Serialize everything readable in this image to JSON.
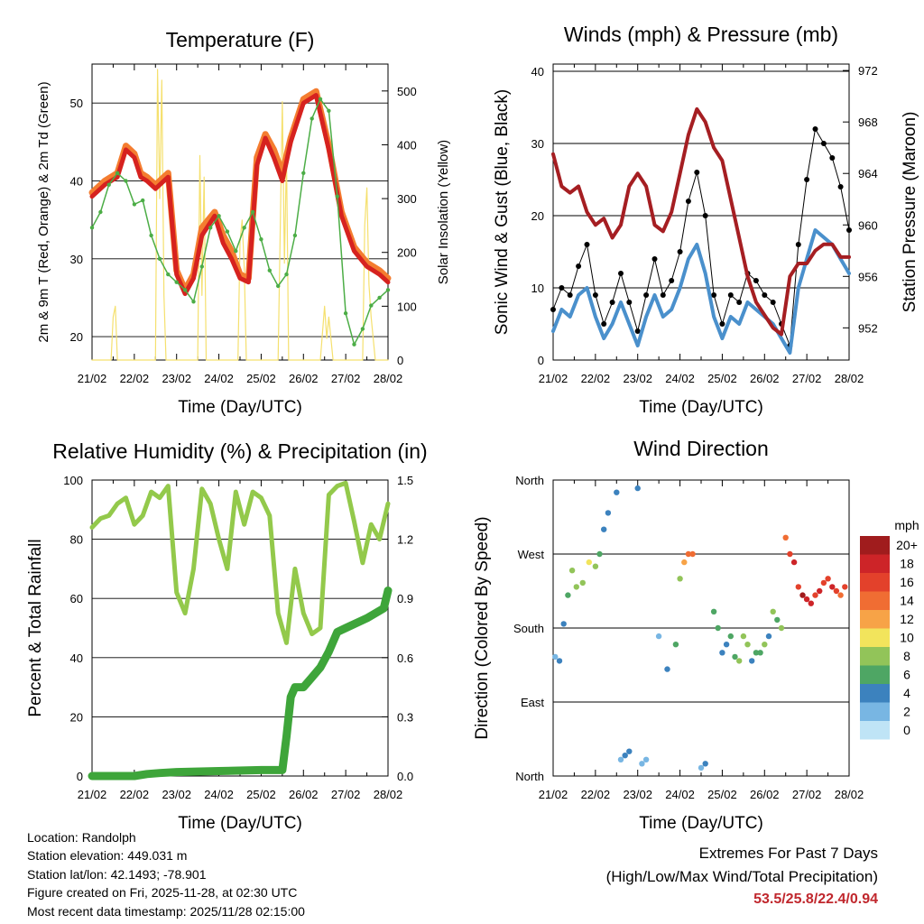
{
  "chart_data": [
    {
      "type": "line",
      "title": "Temperature (F)",
      "xlabel": "Time (Day/UTC)",
      "ylabel": "2m & 9m T (Red, Orange) & 2m Td (Green)",
      "ylabel_right": "Solar Insolation (Yellow)",
      "ylim": [
        17,
        55
      ],
      "ylim_right": [
        0,
        550
      ],
      "xlim": [
        0,
        7
      ],
      "x_tick_labels": [
        "21/02",
        "22/02",
        "23/02",
        "24/02",
        "25/02",
        "26/02",
        "27/02",
        "28/02"
      ],
      "y_ticks": [
        20,
        30,
        40,
        50
      ],
      "y_ticks_right": [
        0,
        100,
        200,
        300,
        400,
        500
      ],
      "series": [
        {
          "name": "2m T",
          "color": "#d6221f",
          "x": [
            0,
            0.3,
            0.6,
            0.8,
            1.0,
            1.15,
            1.3,
            1.5,
            1.8,
            2.0,
            2.2,
            2.4,
            2.6,
            2.9,
            3.1,
            3.3,
            3.5,
            3.7,
            3.9,
            4.1,
            4.3,
            4.5,
            4.7,
            5.0,
            5.3,
            5.6,
            5.9,
            6.2,
            6.5,
            6.8,
            7.0
          ],
          "y": [
            38,
            39.5,
            40.5,
            44,
            43,
            40.5,
            40,
            39,
            40.5,
            28,
            25.5,
            27.5,
            33,
            35.5,
            32,
            30,
            27.5,
            27,
            42,
            45.5,
            43,
            40,
            45,
            50,
            51,
            44,
            35.5,
            31,
            29,
            28,
            27
          ]
        },
        {
          "name": "9m T",
          "color": "#f47d30",
          "x": [
            0,
            0.3,
            0.6,
            0.8,
            1.0,
            1.15,
            1.3,
            1.5,
            1.8,
            2.0,
            2.2,
            2.4,
            2.6,
            2.9,
            3.1,
            3.3,
            3.5,
            3.7,
            3.9,
            4.1,
            4.3,
            4.5,
            4.7,
            5.0,
            5.3,
            5.6,
            5.9,
            6.2,
            6.5,
            6.8,
            7.0
          ],
          "y": [
            38.5,
            40,
            41,
            44.5,
            43.5,
            41,
            40.5,
            39.5,
            41,
            28.5,
            26,
            28,
            34,
            36,
            33,
            31,
            28,
            27.5,
            43,
            46,
            44,
            41,
            45.5,
            50.5,
            51.5,
            44.5,
            36,
            31.5,
            29.5,
            28.5,
            27.5
          ]
        },
        {
          "name": "2m Td",
          "color": "#4cad46",
          "x": [
            0,
            0.2,
            0.4,
            0.6,
            0.8,
            1.0,
            1.2,
            1.4,
            1.6,
            1.8,
            2.0,
            2.2,
            2.4,
            2.6,
            2.8,
            3.0,
            3.2,
            3.4,
            3.6,
            3.8,
            4.0,
            4.2,
            4.4,
            4.6,
            4.8,
            5.0,
            5.2,
            5.4,
            5.6,
            5.8,
            6.0,
            6.2,
            6.4,
            6.6,
            6.8,
            7.0
          ],
          "y": [
            34,
            36,
            39.5,
            41,
            40,
            37,
            37.5,
            33,
            30,
            28,
            27,
            26,
            24.5,
            29,
            34,
            35.5,
            33.5,
            31,
            34,
            36,
            32.5,
            28.5,
            26.5,
            28,
            33,
            41,
            48,
            50.5,
            49,
            38,
            23,
            19,
            21,
            24,
            25,
            26
          ]
        },
        {
          "name": "Solar Insolation",
          "color": "#f5e06e",
          "axis": "right",
          "x": [
            0,
            0.45,
            0.5,
            0.55,
            0.6,
            1.0,
            1.5,
            1.55,
            1.6,
            1.65,
            1.7,
            1.75,
            2.0,
            2.5,
            2.55,
            2.6,
            2.65,
            2.7,
            3.0,
            3.45,
            3.5,
            3.55,
            3.6,
            3.65,
            4.0,
            4.4,
            4.5,
            4.55,
            4.6,
            4.65,
            5.0,
            5.4,
            5.5,
            5.55,
            5.6,
            5.7,
            6.0,
            6.4,
            6.45,
            6.5,
            6.55,
            6.6,
            6.7,
            7.0
          ],
          "y": [
            0,
            0,
            80,
            100,
            0,
            0,
            0,
            540,
            300,
            520,
            120,
            0,
            0,
            0,
            380,
            120,
            340,
            0,
            0,
            0,
            220,
            260,
            170,
            0,
            0,
            0,
            480,
            180,
            380,
            0,
            0,
            0,
            100,
            40,
            80,
            0,
            0,
            0,
            250,
            320,
            140,
            80,
            0,
            0
          ]
        }
      ]
    },
    {
      "type": "line",
      "title": "Winds (mph) & Pressure (mb)",
      "xlabel": "Time (Day/UTC)",
      "ylabel": "Sonic Wind & Gust (Blue, Black)",
      "ylabel_right": "Station Pressure (Maroon)",
      "ylim": [
        0,
        41
      ],
      "ylim_right": [
        949.5,
        972.5
      ],
      "xlim": [
        0,
        7
      ],
      "x_tick_labels": [
        "21/02",
        "22/02",
        "23/02",
        "24/02",
        "25/02",
        "26/02",
        "27/02",
        "28/02"
      ],
      "y_ticks": [
        0,
        10,
        20,
        30,
        40
      ],
      "y_ticks_right": [
        952,
        956,
        960,
        964,
        968,
        972
      ],
      "series": [
        {
          "name": "Sonic Wind",
          "color": "#4a90cc",
          "x": [
            0,
            0.2,
            0.4,
            0.6,
            0.8,
            1.0,
            1.2,
            1.4,
            1.6,
            1.8,
            2.0,
            2.2,
            2.4,
            2.6,
            2.8,
            3.0,
            3.2,
            3.4,
            3.6,
            3.8,
            4.0,
            4.2,
            4.4,
            4.6,
            4.8,
            5.0,
            5.2,
            5.4,
            5.6,
            5.8,
            6.0,
            6.2,
            6.4,
            6.6,
            6.8,
            7.0
          ],
          "y": [
            4,
            7,
            6,
            9,
            10,
            6,
            3,
            5,
            8,
            5,
            2,
            6,
            9,
            6,
            7,
            10,
            14,
            16,
            12,
            6,
            3,
            6,
            5,
            8,
            7,
            6,
            5,
            3,
            1,
            10,
            14,
            18,
            17,
            16,
            14,
            12
          ]
        },
        {
          "name": "Sonic Gust",
          "color": "#000000",
          "x": [
            0,
            0.2,
            0.4,
            0.6,
            0.8,
            1.0,
            1.2,
            1.4,
            1.6,
            1.8,
            2.0,
            2.2,
            2.4,
            2.6,
            2.8,
            3.0,
            3.2,
            3.4,
            3.6,
            3.8,
            4.0,
            4.2,
            4.4,
            4.6,
            4.8,
            5.0,
            5.2,
            5.4,
            5.6,
            5.8,
            6.0,
            6.2,
            6.4,
            6.6,
            6.8,
            7.0
          ],
          "y": [
            7,
            10,
            9,
            13,
            16,
            9,
            5,
            8,
            12,
            8,
            4,
            9,
            14,
            9,
            11,
            15,
            22,
            26,
            20,
            9,
            5,
            9,
            8,
            12,
            11,
            9,
            8,
            5,
            2,
            16,
            25,
            32,
            30,
            28,
            24,
            18
          ]
        },
        {
          "name": "Station Pressure",
          "color": "#a51e22",
          "axis": "right",
          "x": [
            0,
            0.2,
            0.4,
            0.6,
            0.8,
            1.0,
            1.2,
            1.4,
            1.6,
            1.8,
            2.0,
            2.2,
            2.4,
            2.6,
            2.8,
            3.0,
            3.2,
            3.4,
            3.6,
            3.8,
            4.0,
            4.2,
            4.4,
            4.6,
            4.8,
            5.0,
            5.2,
            5.4,
            5.6,
            5.8,
            6.0,
            6.2,
            6.4,
            6.6,
            6.8,
            7.0
          ],
          "y": [
            965.5,
            963,
            962.5,
            963,
            961,
            960,
            960.5,
            959,
            960,
            963,
            964,
            963,
            960,
            959.5,
            961,
            964,
            967,
            969,
            968,
            966,
            965,
            962,
            959,
            956,
            954,
            953,
            952,
            951.5,
            956,
            957,
            957,
            958,
            958.5,
            958.5,
            957.5,
            957.5
          ]
        }
      ]
    },
    {
      "type": "line",
      "title": "Relative Humidity (%) & Precipitation (in)",
      "xlabel": "Time (Day/UTC)",
      "ylabel": "Percent & Total Rainfall",
      "ylim": [
        0,
        100
      ],
      "ylim_right": [
        0,
        1.5
      ],
      "xlim": [
        0,
        7
      ],
      "x_tick_labels": [
        "21/02",
        "22/02",
        "23/02",
        "24/02",
        "25/02",
        "26/02",
        "27/02",
        "28/02"
      ],
      "y_ticks": [
        0,
        20,
        40,
        60,
        80,
        100
      ],
      "y_ticks_right": [
        "0.0",
        "0.3",
        "0.6",
        "0.9",
        "1.2",
        "1.5"
      ],
      "series": [
        {
          "name": "Relative Humidity",
          "color": "#93c94b",
          "x": [
            0,
            0.2,
            0.4,
            0.6,
            0.8,
            1.0,
            1.2,
            1.4,
            1.6,
            1.8,
            2.0,
            2.2,
            2.4,
            2.6,
            2.8,
            3.0,
            3.2,
            3.4,
            3.6,
            3.8,
            4.0,
            4.2,
            4.4,
            4.6,
            4.8,
            5.0,
            5.2,
            5.4,
            5.6,
            5.8,
            6.0,
            6.2,
            6.4,
            6.6,
            6.8,
            7.0
          ],
          "y": [
            84,
            87,
            88,
            92,
            94,
            85,
            88,
            96,
            94,
            98,
            62,
            55,
            70,
            97,
            92,
            80,
            70,
            96,
            85,
            96,
            94,
            88,
            55,
            45,
            70,
            55,
            48,
            50,
            95,
            98,
            99,
            86,
            72,
            85,
            80,
            92
          ]
        },
        {
          "name": "Total Rainfall",
          "color": "#3ea53a",
          "axis": "right",
          "x": [
            0,
            0.5,
            1.0,
            1.3,
            1.6,
            2.0,
            3.0,
            4.0,
            4.5,
            4.6,
            4.7,
            4.8,
            5.0,
            5.2,
            5.4,
            5.6,
            5.8,
            6.0,
            6.5,
            6.9,
            7.0
          ],
          "y": [
            0,
            0,
            0,
            0.01,
            0.015,
            0.02,
            0.025,
            0.03,
            0.03,
            0.2,
            0.4,
            0.45,
            0.45,
            0.5,
            0.55,
            0.63,
            0.73,
            0.75,
            0.8,
            0.85,
            0.94
          ]
        }
      ]
    },
    {
      "type": "scatter",
      "title": "Wind Direction",
      "xlabel": "Time (Day/UTC)",
      "ylabel": "Direction (Colored By Speed)",
      "ylim": [
        0,
        360
      ],
      "xlim": [
        0,
        7
      ],
      "x_tick_labels": [
        "21/02",
        "22/02",
        "23/02",
        "24/02",
        "25/02",
        "26/02",
        "27/02",
        "28/02"
      ],
      "y_tick_labels": [
        "North",
        "East",
        "South",
        "West",
        "North"
      ],
      "y_ticks": [
        0,
        90,
        180,
        270,
        360
      ],
      "colorbar_title": "mph",
      "colorbar_labels": [
        "20+",
        "18",
        "16",
        "14",
        "12",
        "10",
        "8",
        "6",
        "4",
        "2",
        "0"
      ],
      "colorbar_colors": [
        "#a01c1d",
        "#cd2428",
        "#e3412b",
        "#f06d33",
        "#f7a347",
        "#f2e45c",
        "#92c459",
        "#4ea664",
        "#3c82be",
        "#78b6e3",
        "#bfe4f6"
      ],
      "x": [
        0.05,
        0.15,
        0.25,
        0.35,
        0.45,
        0.55,
        0.7,
        0.85,
        1.0,
        1.1,
        1.2,
        1.3,
        1.5,
        1.6,
        1.7,
        1.8,
        2.0,
        2.1,
        2.2,
        2.5,
        2.7,
        2.9,
        3.0,
        3.1,
        3.2,
        3.3,
        3.5,
        3.6,
        3.8,
        3.9,
        4.0,
        4.1,
        4.2,
        4.3,
        4.4,
        4.5,
        4.6,
        4.7,
        4.8,
        4.9,
        5.0,
        5.1,
        5.2,
        5.3,
        5.4,
        5.5,
        5.6,
        5.7,
        5.8,
        5.9,
        6.0,
        6.1,
        6.2,
        6.3,
        6.4,
        6.5,
        6.6,
        6.7,
        6.8,
        6.9
      ],
      "y": [
        145,
        140,
        185,
        220,
        250,
        230,
        235,
        260,
        255,
        270,
        300,
        320,
        345,
        20,
        25,
        30,
        350,
        15,
        20,
        170,
        130,
        160,
        240,
        260,
        270,
        270,
        10,
        15,
        200,
        180,
        150,
        160,
        170,
        145,
        140,
        170,
        160,
        140,
        150,
        150,
        160,
        170,
        200,
        190,
        180,
        290,
        270,
        260,
        230,
        220,
        215,
        210,
        220,
        225,
        235,
        240,
        230,
        225,
        220,
        230
      ],
      "speed": [
        3,
        4,
        4,
        7,
        9,
        8,
        9,
        10,
        9,
        6,
        4,
        5,
        4,
        3,
        5,
        4,
        4,
        2,
        3,
        2,
        4,
        7,
        8,
        12,
        15,
        14,
        3,
        4,
        6,
        7,
        5,
        5,
        7,
        6,
        8,
        9,
        8,
        5,
        6,
        7,
        8,
        5,
        9,
        6,
        8,
        14,
        16,
        18,
        17,
        20,
        19,
        18,
        17,
        18,
        16,
        17,
        18,
        16,
        15,
        17
      ]
    }
  ],
  "footer": {
    "location": "Location: Randolph",
    "elevation": "Station elevation: 449.031 m",
    "latlon": "Station lat/lon: 42.1493; -78.901",
    "created": "Figure created on Fri, 2025-11-28, at 02:30 UTC",
    "recent": "Most recent data timestamp: 2025/11/28 02:15:00"
  },
  "extremes": {
    "title": "Extremes For Past 7 Days",
    "subtitle": "(High/Low/Max Wind/Total Precipitation)",
    "values": "53.5/25.8/22.4/0.94"
  }
}
